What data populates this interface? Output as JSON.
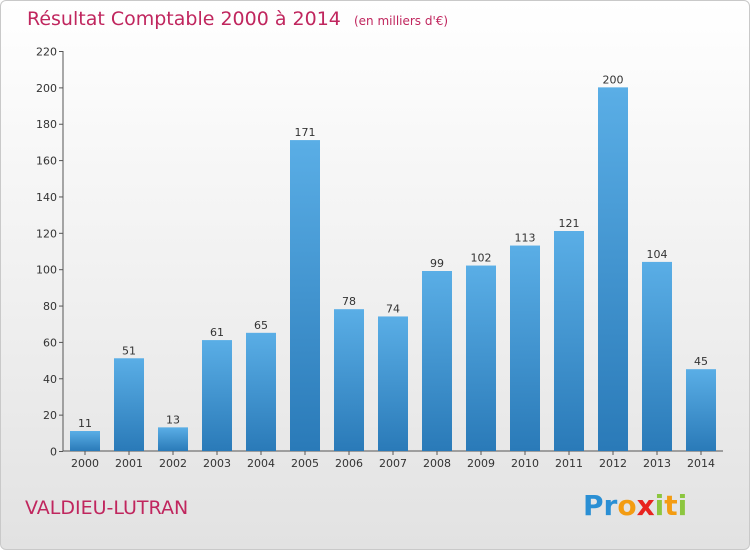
{
  "chart_data": {
    "type": "bar",
    "title": "Résultat Comptable 2000 à 2014",
    "subtitle": "(en milliers d'€)",
    "categories": [
      "2000",
      "2001",
      "2002",
      "2003",
      "2004",
      "2005",
      "2006",
      "2007",
      "2008",
      "2009",
      "2010",
      "2011",
      "2012",
      "2013",
      "2014"
    ],
    "values": [
      11,
      51,
      13,
      61,
      65,
      171,
      78,
      74,
      99,
      102,
      113,
      121,
      200,
      104,
      45
    ],
    "ylim": [
      0,
      220
    ],
    "yticks": [
      0,
      20,
      40,
      60,
      80,
      100,
      120,
      140,
      160,
      180,
      200,
      220
    ],
    "xlabel": "",
    "ylabel": "",
    "grid": false,
    "bar_color_top": "#5aaee6",
    "bar_color_bottom": "#2a7ab8"
  },
  "location": "VALDIEU-LUTRAN",
  "brand": {
    "letters": [
      "P",
      "r",
      "o",
      "x",
      "i",
      "t",
      "i"
    ],
    "colors": [
      "#2a8fd4",
      "#2a8fd4",
      "#f39c12",
      "#e8231f",
      "#8cc63f",
      "#f39c12",
      "#8cc63f"
    ]
  },
  "colors": {
    "title": "#c0265e",
    "axis": "#555555"
  }
}
